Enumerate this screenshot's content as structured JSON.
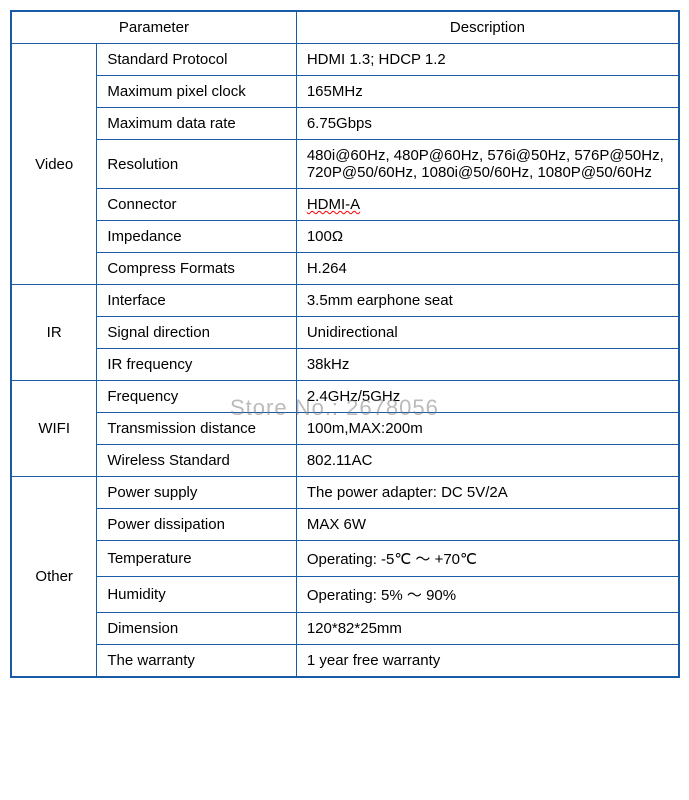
{
  "table": {
    "border_color": "#1a5ba8",
    "background_color": "#ffffff",
    "text_color": "#000000",
    "font_size": 15,
    "headers": {
      "parameter": "Parameter",
      "description": "Description"
    },
    "sections": [
      {
        "category": "Video",
        "rows": [
          {
            "param": "Standard Protocol",
            "desc": "HDMI 1.3; HDCP 1.2"
          },
          {
            "param": "Maximum pixel clock",
            "desc": "165MHz"
          },
          {
            "param": "Maximum data rate",
            "desc": "6.75Gbps"
          },
          {
            "param": "Resolution",
            "desc": "480i@60Hz, 480P@60Hz, 576i@50Hz, 576P@50Hz, 720P@50/60Hz, 1080i@50/60Hz, 1080P@50/60Hz"
          },
          {
            "param": "Connector",
            "desc": "HDMI-A",
            "underline": true
          },
          {
            "param": "Impedance",
            "desc": "100Ω"
          },
          {
            "param": "Compress Formats",
            "desc": "H.264"
          }
        ]
      },
      {
        "category": "IR",
        "rows": [
          {
            "param": "Interface",
            "desc": "3.5mm earphone seat"
          },
          {
            "param": "Signal direction",
            "desc": "Unidirectional"
          },
          {
            "param": "IR frequency",
            "desc": "38kHz"
          }
        ]
      },
      {
        "category": "WIFI",
        "rows": [
          {
            "param": "Frequency",
            "desc": "2.4GHz/5GHz"
          },
          {
            "param": "Transmission distance",
            "desc": "100m,MAX:200m"
          },
          {
            "param": "Wireless Standard",
            "desc": "802.11AC"
          }
        ]
      },
      {
        "category": "Other",
        "rows": [
          {
            "param": "Power supply",
            "desc": "The power adapter: DC 5V/2A"
          },
          {
            "param": "Power dissipation",
            "desc": "MAX 6W"
          },
          {
            "param": "Temperature",
            "desc": "Operating: -5℃  ～ +70℃"
          },
          {
            "param": "Humidity",
            "desc": "Operating: 5% ～ 90%"
          },
          {
            "param": "Dimension",
            "desc": "120*82*25mm"
          },
          {
            "param": "The warranty",
            "desc": "1 year free warranty"
          }
        ]
      }
    ]
  },
  "watermark": "Store No.: 2678056"
}
